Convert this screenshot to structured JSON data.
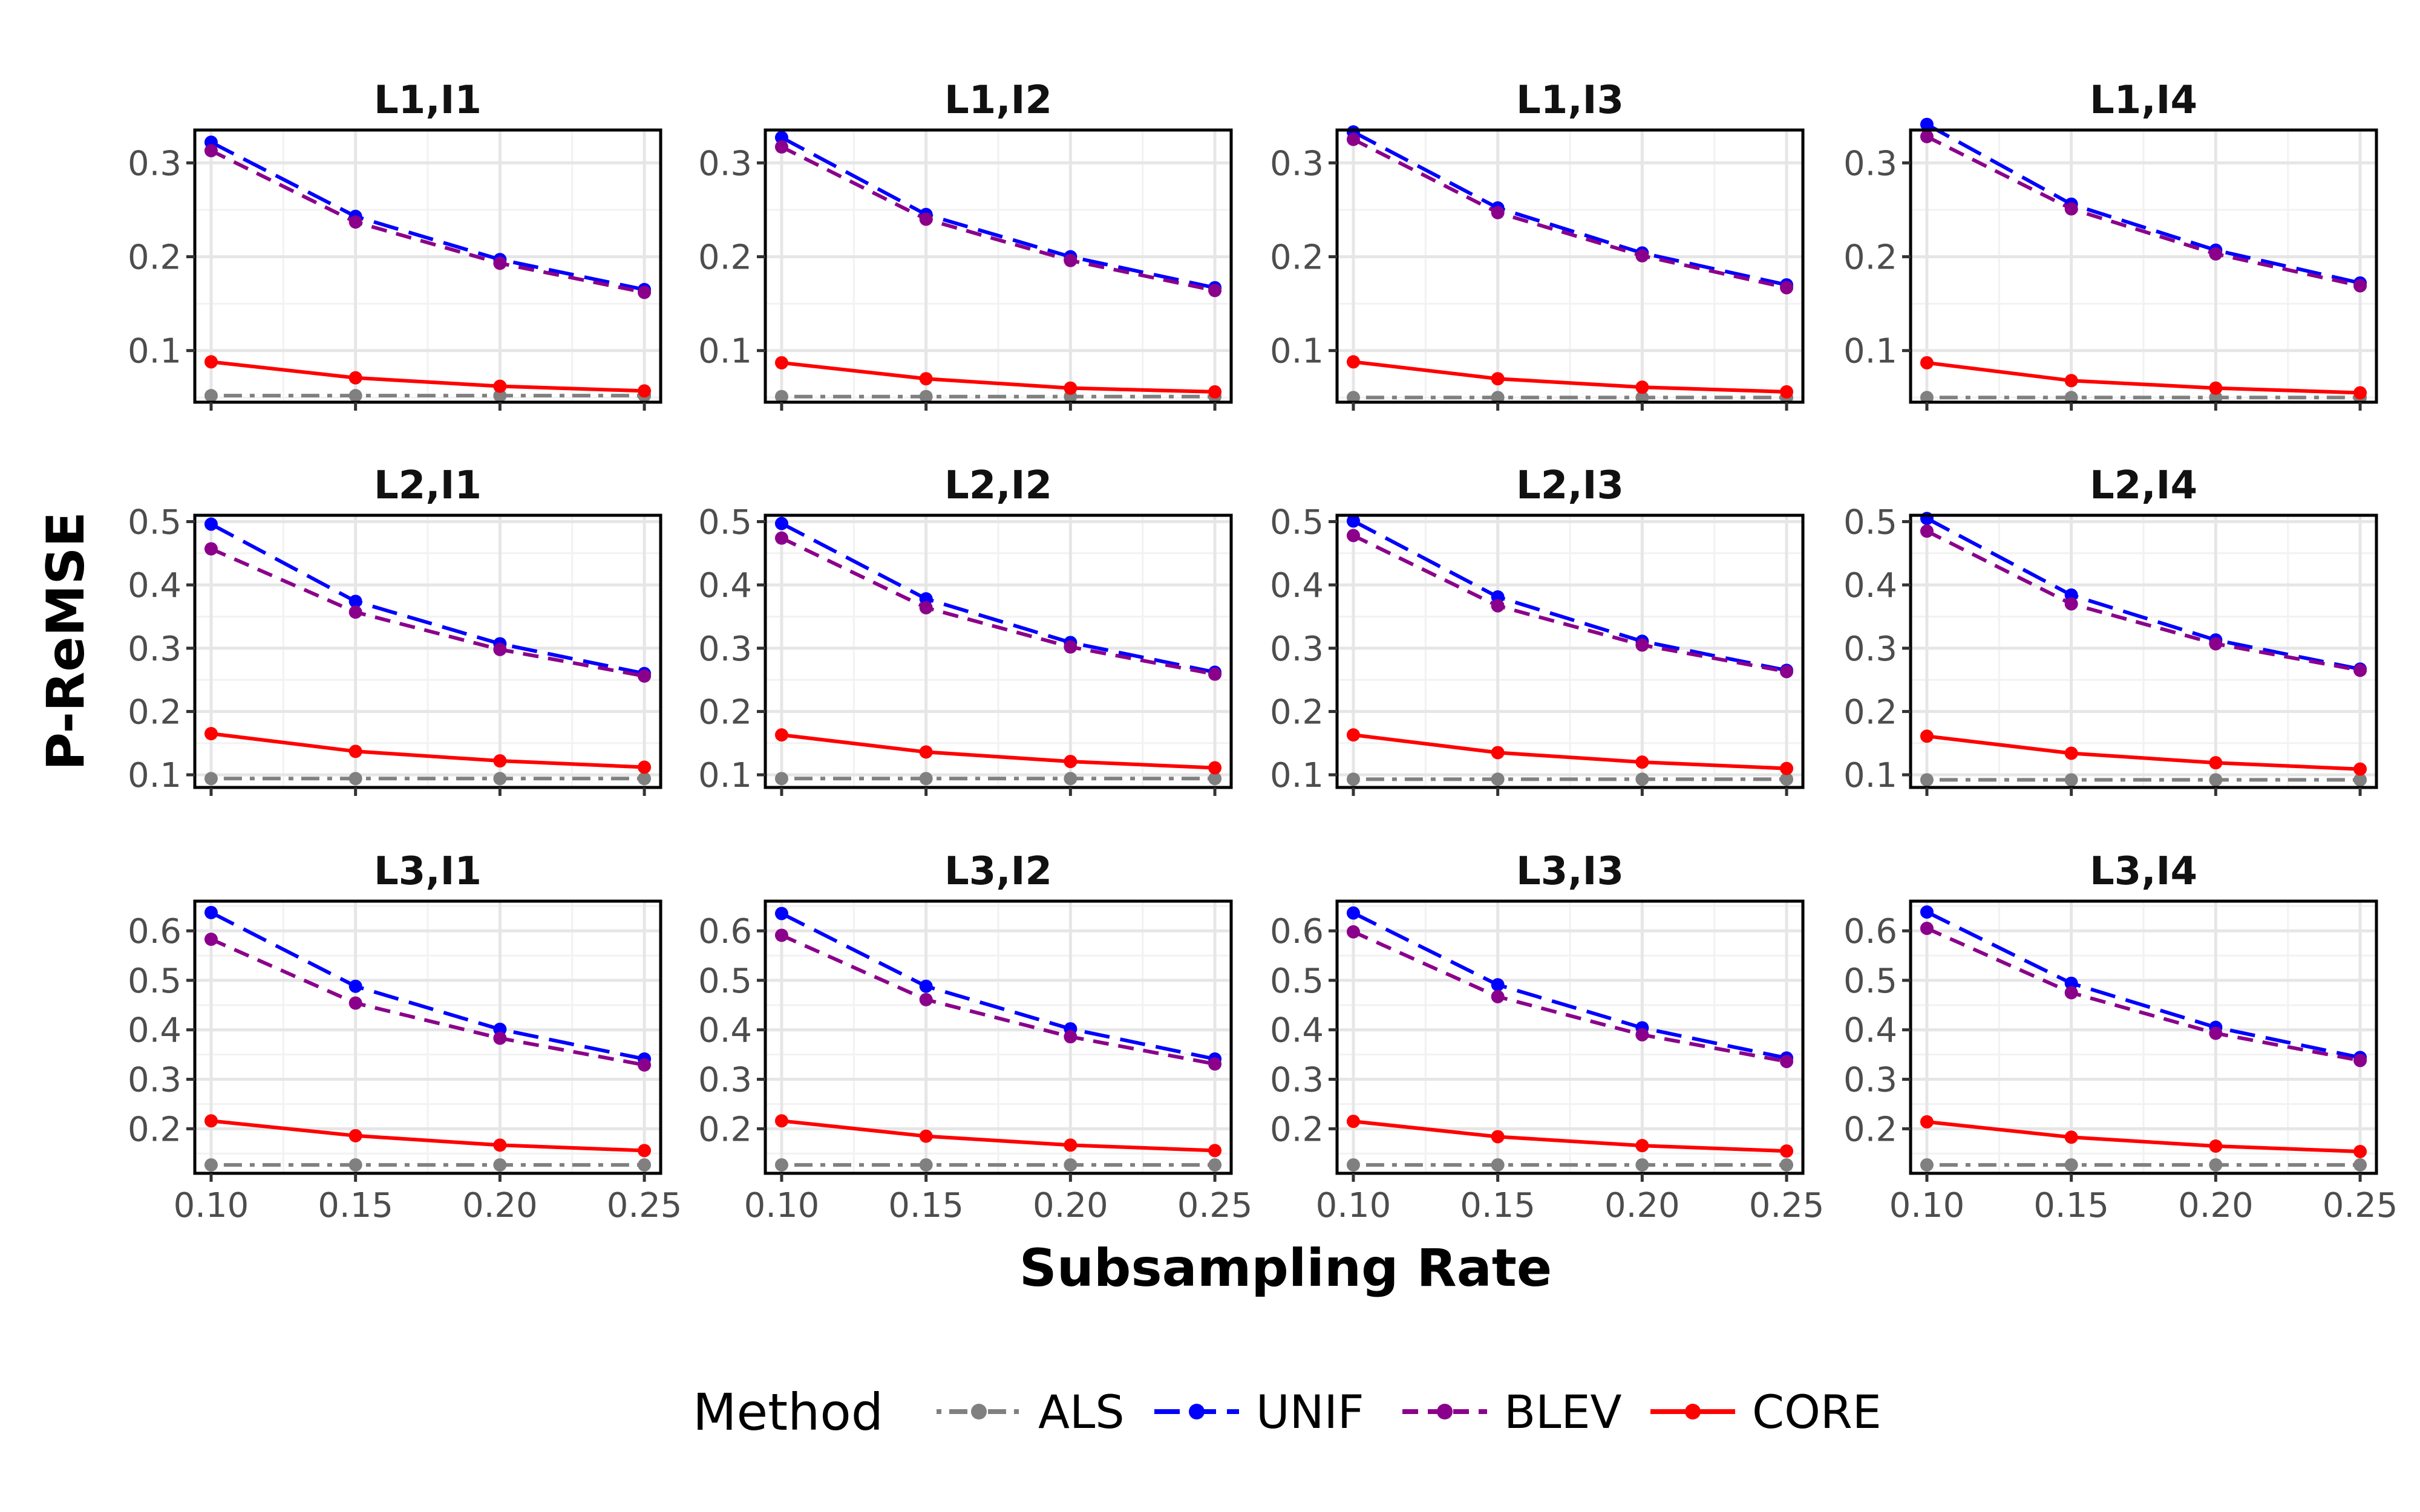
{
  "chart_data": {
    "type": "line",
    "xlabel": "Subsampling Rate",
    "ylabel": "P-ReMSE",
    "x": [
      0.1,
      0.15,
      0.2,
      0.25
    ],
    "x_ticks": [
      "0.10",
      "0.15",
      "0.20",
      "0.25"
    ],
    "grid": true,
    "legend": {
      "title": "Method",
      "position": "bottom",
      "entries": [
        {
          "name": "ALS",
          "color": "#808080",
          "dash": "dotdash"
        },
        {
          "name": "UNIF",
          "color": "#0000ff",
          "dash": "longdash"
        },
        {
          "name": "BLEV",
          "color": "#8b008b",
          "dash": "dashed"
        },
        {
          "name": "CORE",
          "color": "#ff0000",
          "dash": "solid"
        }
      ]
    },
    "rows": [
      {
        "ylim": [
          0.045,
          0.335
        ],
        "y_ticks": [
          0.1,
          0.2,
          0.3
        ],
        "y_tick_labels": [
          "0.1",
          "0.2",
          "0.3"
        ],
        "panels": [
          {
            "title": "L1,I1",
            "series": [
              {
                "name": "ALS",
                "values": [
                  0.052,
                  0.052,
                  0.052,
                  0.052
                ]
              },
              {
                "name": "UNIF",
                "values": [
                  0.322,
                  0.243,
                  0.197,
                  0.165
                ]
              },
              {
                "name": "BLEV",
                "values": [
                  0.313,
                  0.237,
                  0.193,
                  0.162
                ]
              },
              {
                "name": "CORE",
                "values": [
                  0.088,
                  0.071,
                  0.062,
                  0.057
                ]
              }
            ]
          },
          {
            "title": "L1,I2",
            "series": [
              {
                "name": "ALS",
                "values": [
                  0.051,
                  0.051,
                  0.051,
                  0.051
                ]
              },
              {
                "name": "UNIF",
                "values": [
                  0.327,
                  0.245,
                  0.2,
                  0.167
                ]
              },
              {
                "name": "BLEV",
                "values": [
                  0.317,
                  0.24,
                  0.196,
                  0.164
                ]
              },
              {
                "name": "CORE",
                "values": [
                  0.087,
                  0.07,
                  0.06,
                  0.056
                ]
              }
            ]
          },
          {
            "title": "L1,I3",
            "series": [
              {
                "name": "ALS",
                "values": [
                  0.05,
                  0.05,
                  0.05,
                  0.05
                ]
              },
              {
                "name": "UNIF",
                "values": [
                  0.333,
                  0.252,
                  0.204,
                  0.17
                ]
              },
              {
                "name": "BLEV",
                "values": [
                  0.325,
                  0.247,
                  0.201,
                  0.167
                ]
              },
              {
                "name": "CORE",
                "values": [
                  0.088,
                  0.07,
                  0.061,
                  0.056
                ]
              }
            ]
          },
          {
            "title": "L1,I4",
            "series": [
              {
                "name": "ALS",
                "values": [
                  0.05,
                  0.05,
                  0.05,
                  0.05
                ]
              },
              {
                "name": "UNIF",
                "values": [
                  0.341,
                  0.256,
                  0.207,
                  0.172
                ]
              },
              {
                "name": "BLEV",
                "values": [
                  0.328,
                  0.251,
                  0.203,
                  0.169
                ]
              },
              {
                "name": "CORE",
                "values": [
                  0.087,
                  0.068,
                  0.06,
                  0.055
                ]
              }
            ]
          }
        ]
      },
      {
        "ylim": [
          0.08,
          0.51
        ],
        "y_ticks": [
          0.1,
          0.2,
          0.3,
          0.4,
          0.5
        ],
        "y_tick_labels": [
          "0.1",
          "0.2",
          "0.3",
          "0.4",
          "0.5"
        ],
        "panels": [
          {
            "title": "L2,I1",
            "series": [
              {
                "name": "ALS",
                "values": [
                  0.094,
                  0.094,
                  0.094,
                  0.094
                ]
              },
              {
                "name": "UNIF",
                "values": [
                  0.496,
                  0.374,
                  0.307,
                  0.26
                ]
              },
              {
                "name": "BLEV",
                "values": [
                  0.457,
                  0.357,
                  0.298,
                  0.256
                ]
              },
              {
                "name": "CORE",
                "values": [
                  0.165,
                  0.137,
                  0.122,
                  0.112
                ]
              }
            ]
          },
          {
            "title": "L2,I2",
            "series": [
              {
                "name": "ALS",
                "values": [
                  0.094,
                  0.094,
                  0.094,
                  0.094
                ]
              },
              {
                "name": "UNIF",
                "values": [
                  0.497,
                  0.378,
                  0.309,
                  0.262
                ]
              },
              {
                "name": "BLEV",
                "values": [
                  0.474,
                  0.364,
                  0.302,
                  0.259
                ]
              },
              {
                "name": "CORE",
                "values": [
                  0.163,
                  0.136,
                  0.121,
                  0.111
                ]
              }
            ]
          },
          {
            "title": "L2,I3",
            "series": [
              {
                "name": "ALS",
                "values": [
                  0.093,
                  0.093,
                  0.093,
                  0.093
                ]
              },
              {
                "name": "UNIF",
                "values": [
                  0.501,
                  0.381,
                  0.311,
                  0.265
                ]
              },
              {
                "name": "BLEV",
                "values": [
                  0.478,
                  0.367,
                  0.305,
                  0.263
                ]
              },
              {
                "name": "CORE",
                "values": [
                  0.163,
                  0.135,
                  0.12,
                  0.11
                ]
              }
            ]
          },
          {
            "title": "L2,I4",
            "series": [
              {
                "name": "ALS",
                "values": [
                  0.092,
                  0.092,
                  0.092,
                  0.092
                ]
              },
              {
                "name": "UNIF",
                "values": [
                  0.505,
                  0.384,
                  0.313,
                  0.267
                ]
              },
              {
                "name": "BLEV",
                "values": [
                  0.485,
                  0.37,
                  0.307,
                  0.265
                ]
              },
              {
                "name": "CORE",
                "values": [
                  0.161,
                  0.134,
                  0.119,
                  0.109
                ]
              }
            ]
          }
        ]
      },
      {
        "ylim": [
          0.11,
          0.66
        ],
        "y_ticks": [
          0.2,
          0.3,
          0.4,
          0.5,
          0.6
        ],
        "y_tick_labels": [
          "0.2",
          "0.3",
          "0.4",
          "0.5",
          "0.6"
        ],
        "panels": [
          {
            "title": "L3,I1",
            "series": [
              {
                "name": "ALS",
                "values": [
                  0.127,
                  0.127,
                  0.127,
                  0.127
                ]
              },
              {
                "name": "UNIF",
                "values": [
                  0.637,
                  0.488,
                  0.401,
                  0.341
                ]
              },
              {
                "name": "BLEV",
                "values": [
                  0.583,
                  0.454,
                  0.383,
                  0.329
                ]
              },
              {
                "name": "CORE",
                "values": [
                  0.216,
                  0.186,
                  0.167,
                  0.156
                ]
              }
            ]
          },
          {
            "title": "L3,I2",
            "series": [
              {
                "name": "ALS",
                "values": [
                  0.127,
                  0.127,
                  0.127,
                  0.127
                ]
              },
              {
                "name": "UNIF",
                "values": [
                  0.635,
                  0.488,
                  0.402,
                  0.341
                ]
              },
              {
                "name": "BLEV",
                "values": [
                  0.591,
                  0.461,
                  0.386,
                  0.331
                ]
              },
              {
                "name": "CORE",
                "values": [
                  0.216,
                  0.185,
                  0.167,
                  0.156
                ]
              }
            ]
          },
          {
            "title": "L3,I3",
            "series": [
              {
                "name": "ALS",
                "values": [
                  0.127,
                  0.127,
                  0.127,
                  0.127
                ]
              },
              {
                "name": "UNIF",
                "values": [
                  0.636,
                  0.491,
                  0.404,
                  0.343
                ]
              },
              {
                "name": "BLEV",
                "values": [
                  0.598,
                  0.467,
                  0.39,
                  0.336
                ]
              },
              {
                "name": "CORE",
                "values": [
                  0.215,
                  0.184,
                  0.166,
                  0.155
                ]
              }
            ]
          },
          {
            "title": "L3,I4",
            "series": [
              {
                "name": "ALS",
                "values": [
                  0.127,
                  0.127,
                  0.127,
                  0.127
                ]
              },
              {
                "name": "UNIF",
                "values": [
                  0.638,
                  0.494,
                  0.405,
                  0.344
                ]
              },
              {
                "name": "BLEV",
                "values": [
                  0.605,
                  0.475,
                  0.393,
                  0.338
                ]
              },
              {
                "name": "CORE",
                "values": [
                  0.214,
                  0.183,
                  0.165,
                  0.154
                ]
              }
            ]
          }
        ]
      }
    ]
  }
}
